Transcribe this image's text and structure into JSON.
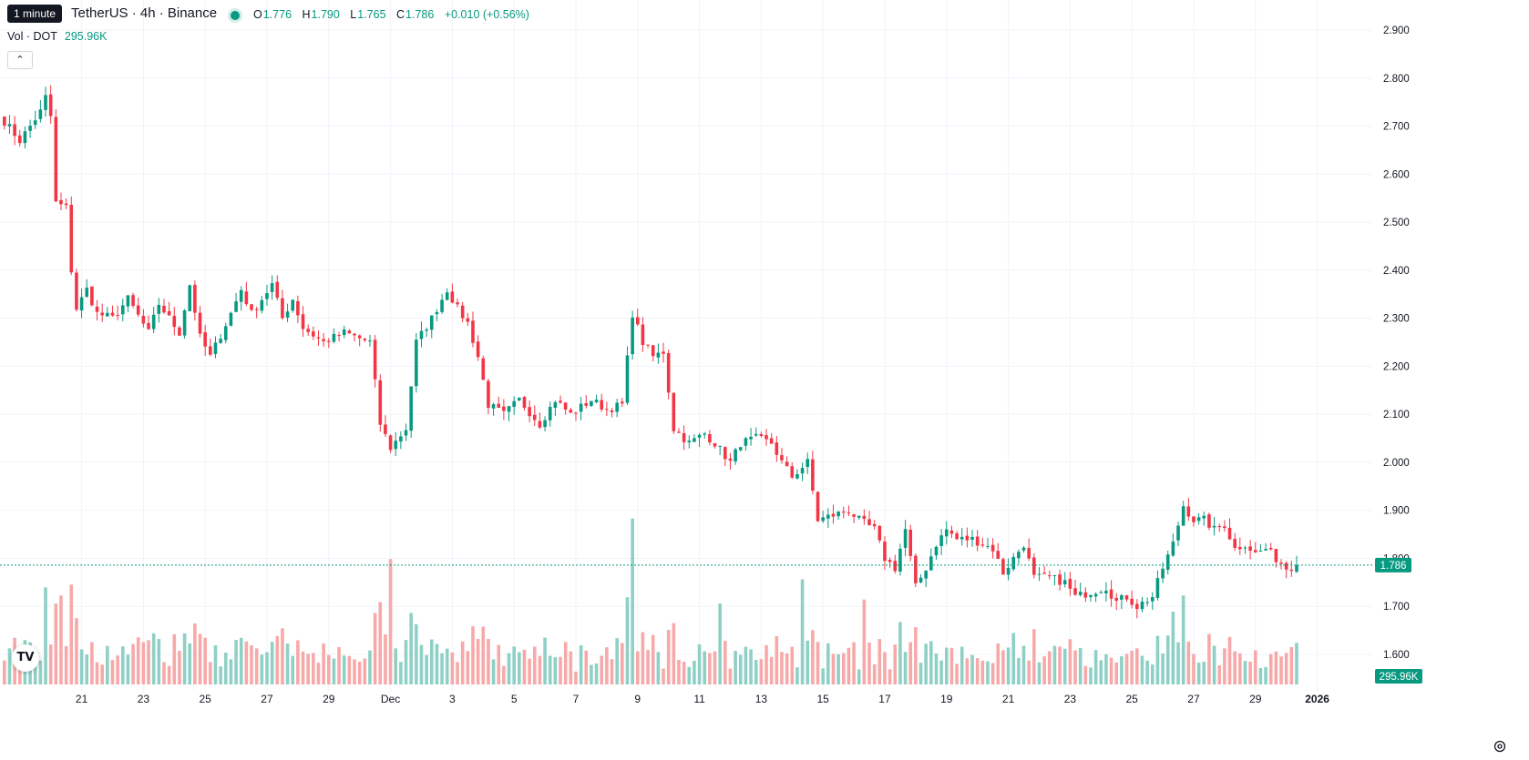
{
  "header": {
    "tooltip": "1 minute",
    "title": "TetherUS · 4h · Binance",
    "ohlc": {
      "o_label": "O",
      "o": "1.776",
      "h_label": "H",
      "h": "1.790",
      "l_label": "L",
      "l": "1.765",
      "c_label": "C",
      "c": "1.786",
      "change": "+0.010 (+0.56%)"
    },
    "volume_label": "Vol · DOT",
    "volume_value": "295.96K",
    "collapse_icon": "chevron-up-icon"
  },
  "colors": {
    "up": "#089981",
    "down": "#F23645",
    "up_vol": "#8fd0c6",
    "down_vol": "#f7a9a9",
    "grid": "#f0f3fa"
  },
  "logo_text": "TV",
  "chart_data": {
    "type": "candlestick",
    "interval": "4h",
    "y_axis": {
      "min": 1.55,
      "max": 2.92,
      "ticks": [
        "1.600",
        "1.700",
        "1.800",
        "1.900",
        "2.000",
        "2.100",
        "2.200",
        "2.300",
        "2.400",
        "2.500",
        "2.600",
        "2.700",
        "2.800",
        "2.900"
      ]
    },
    "x_labels": [
      {
        "label": "21",
        "index": 15
      },
      {
        "label": "23",
        "index": 27
      },
      {
        "label": "25",
        "index": 39
      },
      {
        "label": "27",
        "index": 51
      },
      {
        "label": "29",
        "index": 63
      },
      {
        "label": "Dec",
        "index": 75
      },
      {
        "label": "3",
        "index": 87
      },
      {
        "label": "5",
        "index": 99
      },
      {
        "label": "7",
        "index": 111
      },
      {
        "label": "9",
        "index": 123
      },
      {
        "label": "11",
        "index": 135
      },
      {
        "label": "13",
        "index": 147
      },
      {
        "label": "15",
        "index": 159
      },
      {
        "label": "17",
        "index": 171
      },
      {
        "label": "19",
        "index": 183
      },
      {
        "label": "21",
        "index": 195
      },
      {
        "label": "23",
        "index": 207
      },
      {
        "label": "25",
        "index": 219
      },
      {
        "label": "27",
        "index": 231
      },
      {
        "label": "29",
        "index": 243
      },
      {
        "label": "2026",
        "index": 255
      }
    ],
    "last_price": "1.786",
    "last_volume": "295.96K",
    "close_anchors": [
      [
        0,
        2.71
      ],
      [
        3,
        2.67
      ],
      [
        7,
        2.73
      ],
      [
        8,
        2.76
      ],
      [
        9,
        2.72
      ],
      [
        10,
        2.54
      ],
      [
        12,
        2.53
      ],
      [
        13,
        2.4
      ],
      [
        14,
        2.32
      ],
      [
        16,
        2.36
      ],
      [
        18,
        2.31
      ],
      [
        21,
        2.3
      ],
      [
        24,
        2.34
      ],
      [
        28,
        2.27
      ],
      [
        30,
        2.33
      ],
      [
        34,
        2.27
      ],
      [
        36,
        2.37
      ],
      [
        38,
        2.26
      ],
      [
        40,
        2.22
      ],
      [
        44,
        2.31
      ],
      [
        46,
        2.36
      ],
      [
        48,
        2.31
      ],
      [
        52,
        2.37
      ],
      [
        54,
        2.3
      ],
      [
        56,
        2.34
      ],
      [
        58,
        2.28
      ],
      [
        62,
        2.25
      ],
      [
        66,
        2.27
      ],
      [
        71,
        2.25
      ],
      [
        73,
        2.08
      ],
      [
        75,
        2.03
      ],
      [
        78,
        2.07
      ],
      [
        80,
        2.25
      ],
      [
        83,
        2.3
      ],
      [
        86,
        2.36
      ],
      [
        88,
        2.32
      ],
      [
        90,
        2.29
      ],
      [
        92,
        2.22
      ],
      [
        94,
        2.12
      ],
      [
        97,
        2.1
      ],
      [
        100,
        2.13
      ],
      [
        104,
        2.08
      ],
      [
        107,
        2.13
      ],
      [
        110,
        2.1
      ],
      [
        114,
        2.13
      ],
      [
        117,
        2.11
      ],
      [
        120,
        2.12
      ],
      [
        122,
        2.31
      ],
      [
        124,
        2.25
      ],
      [
        126,
        2.22
      ],
      [
        128,
        2.23
      ],
      [
        130,
        2.07
      ],
      [
        133,
        2.04
      ],
      [
        136,
        2.06
      ],
      [
        138,
        2.04
      ],
      [
        141,
        2.0
      ],
      [
        143,
        2.04
      ],
      [
        146,
        2.05
      ],
      [
        149,
        2.04
      ],
      [
        151,
        2.0
      ],
      [
        153,
        1.97
      ],
      [
        156,
        2.0
      ],
      [
        158,
        1.88
      ],
      [
        161,
        1.89
      ],
      [
        164,
        1.9
      ],
      [
        166,
        1.88
      ],
      [
        169,
        1.86
      ],
      [
        171,
        1.8
      ],
      [
        173,
        1.78
      ],
      [
        175,
        1.86
      ],
      [
        177,
        1.74
      ],
      [
        179,
        1.78
      ],
      [
        181,
        1.83
      ],
      [
        183,
        1.86
      ],
      [
        185,
        1.84
      ],
      [
        188,
        1.84
      ],
      [
        190,
        1.83
      ],
      [
        192,
        1.82
      ],
      [
        194,
        1.77
      ],
      [
        196,
        1.8
      ],
      [
        198,
        1.83
      ],
      [
        200,
        1.76
      ],
      [
        203,
        1.76
      ],
      [
        206,
        1.75
      ],
      [
        208,
        1.72
      ],
      [
        211,
        1.73
      ],
      [
        214,
        1.74
      ],
      [
        216,
        1.71
      ],
      [
        218,
        1.72
      ],
      [
        220,
        1.7
      ],
      [
        223,
        1.72
      ],
      [
        225,
        1.78
      ],
      [
        227,
        1.83
      ],
      [
        229,
        1.91
      ],
      [
        231,
        1.88
      ],
      [
        233,
        1.88
      ],
      [
        235,
        1.86
      ],
      [
        237,
        1.87
      ],
      [
        239,
        1.82
      ],
      [
        241,
        1.83
      ],
      [
        243,
        1.81
      ],
      [
        245,
        1.82
      ],
      [
        247,
        1.8
      ],
      [
        249,
        1.78
      ],
      [
        251,
        1.786
      ]
    ],
    "volume_spikes": [
      [
        8,
        0.24
      ],
      [
        10,
        0.2
      ],
      [
        11,
        0.22
      ],
      [
        75,
        0.31
      ],
      [
        122,
        0.41
      ],
      [
        139,
        0.2
      ],
      [
        155,
        0.26
      ],
      [
        167,
        0.21
      ],
      [
        227,
        0.18
      ],
      [
        229,
        0.22
      ]
    ]
  }
}
